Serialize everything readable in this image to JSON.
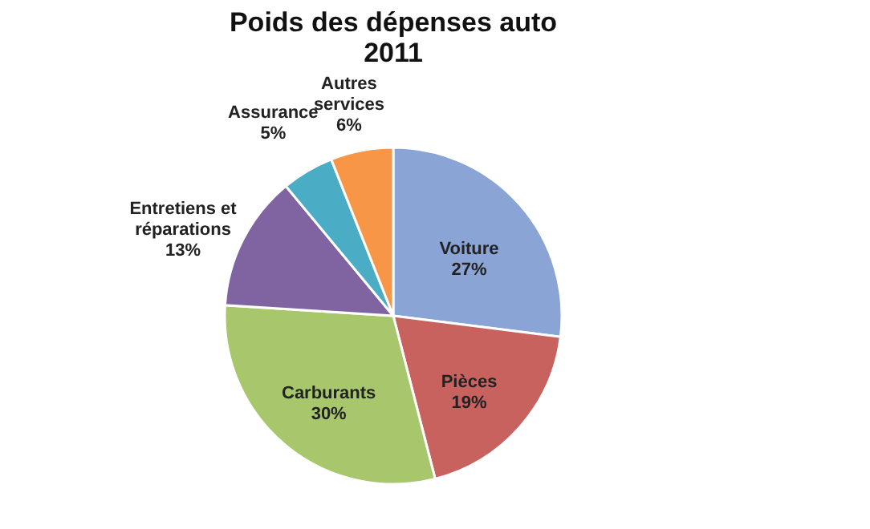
{
  "chart_data": {
    "type": "pie",
    "title": "Poids des dépenses auto\n2011",
    "categories": [
      "Voiture",
      "Pièces",
      "Carburants",
      "Entretiens et réparations",
      "Assurance",
      "Autres services"
    ],
    "values": [
      27,
      19,
      30,
      13,
      5,
      6
    ],
    "colors": [
      "#8aa4d6",
      "#c8625f",
      "#a8c66c",
      "#8064a2",
      "#4bacc6",
      "#f79646"
    ],
    "value_labels": [
      "27%",
      "19%",
      "30%",
      "13%",
      "5%",
      "6%"
    ],
    "legend": false
  }
}
